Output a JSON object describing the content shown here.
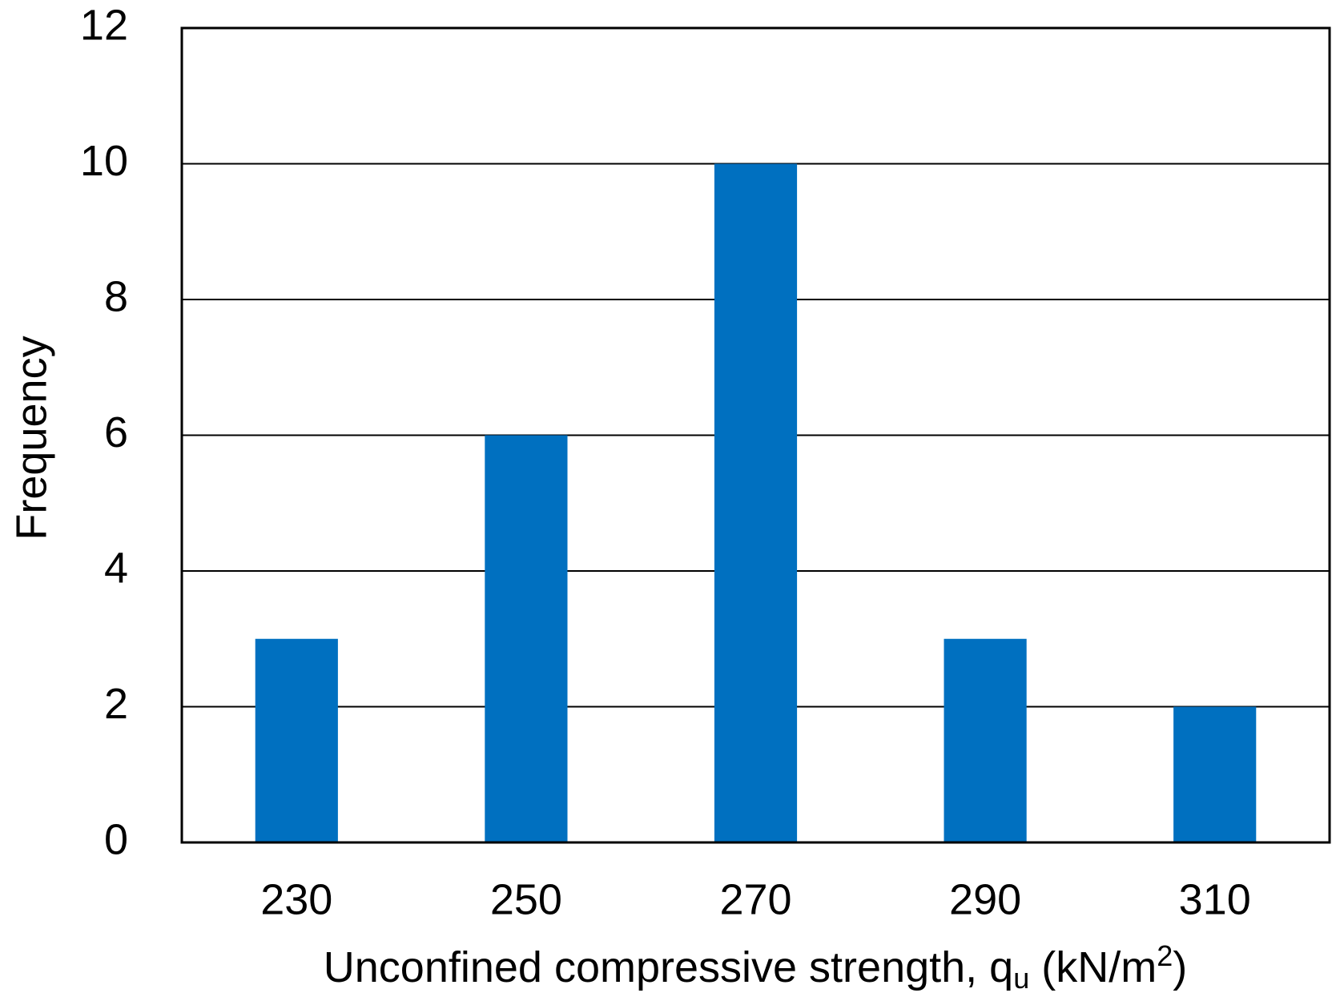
{
  "chart_data": {
    "type": "bar",
    "x_label": [
      "Unconfined compressive strength, q",
      "u",
      " (kN/m",
      "2",
      ")"
    ],
    "y_label": "Frequency",
    "categories": [
      "230",
      "250",
      "270",
      "290",
      "310"
    ],
    "values": [
      3,
      6,
      10,
      3,
      2
    ],
    "color": "#0070c0",
    "ylim": [
      0,
      12
    ],
    "yticks": [
      0,
      2,
      4,
      6,
      8,
      10,
      12
    ],
    "grid": true
  }
}
